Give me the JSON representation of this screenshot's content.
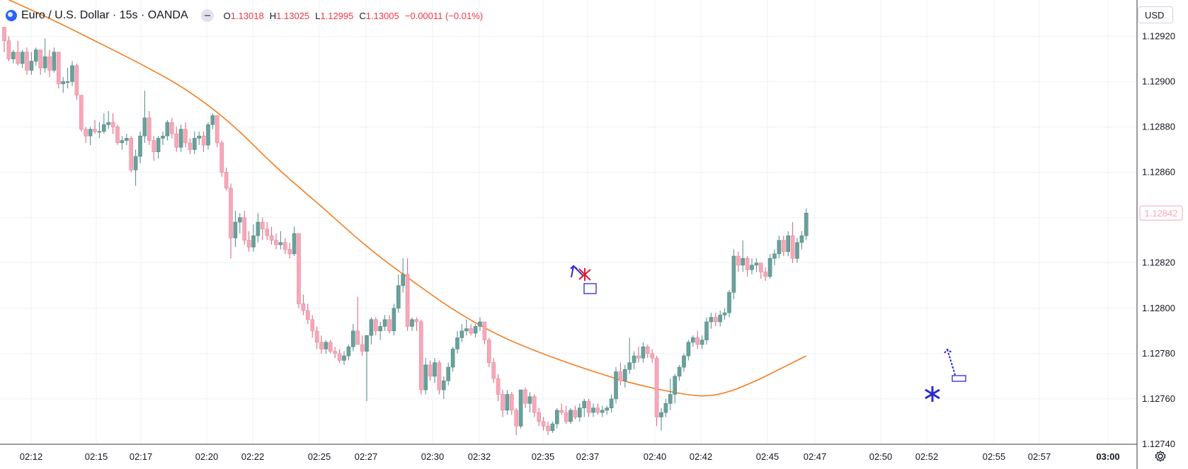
{
  "header": {
    "title": "Euro / U.S. Dollar · 15s · OANDA",
    "ohlc": [
      {
        "label": "O",
        "value": "1.13018"
      },
      {
        "label": "H",
        "value": "1.13025"
      },
      {
        "label": "L",
        "value": "1.12995"
      },
      {
        "label": "C",
        "value": "1.13005"
      }
    ],
    "change": "−0.00011 (−0.01%)"
  },
  "currency_label": "USD",
  "last_price_label": "1.12842",
  "colors": {
    "up": "#6aa09b",
    "down": "#f7a8b8",
    "ma": "#f57c1f",
    "marker": "#2b2bcf",
    "cross": "#e0182b",
    "last_price": "#f7a8b8"
  },
  "chart_data": {
    "type": "candlestick",
    "title": "",
    "ylim": [
      1.1274,
      1.12936
    ],
    "y_ticks": [
      "1.12740",
      "1.12760",
      "1.12780",
      "1.12800",
      "1.12820",
      "1.12840",
      "1.12860",
      "1.12880",
      "1.12900",
      "1.12920"
    ],
    "x_ticks": [
      "02:12",
      "02:15",
      "02:17",
      "02:20",
      "02:22",
      "02:25",
      "02:27",
      "02:30",
      "02:32",
      "02:35",
      "02:37",
      "02:40",
      "02:42",
      "02:45",
      "02:47",
      "02:50",
      "02:52",
      "02:55",
      "02:57",
      "03:00"
    ],
    "last_price": 1.12842,
    "candles": [
      [
        1.12924,
        1.12924,
        1.12913,
        1.12918
      ],
      [
        1.12918,
        1.1292,
        1.12909,
        1.1291
      ],
      [
        1.1291,
        1.12914,
        1.12908,
        1.12913
      ],
      [
        1.12913,
        1.12918,
        1.12907,
        1.12908
      ],
      [
        1.12908,
        1.12914,
        1.12906,
        1.12913
      ],
      [
        1.12913,
        1.12915,
        1.12903,
        1.12905
      ],
      [
        1.12905,
        1.12913,
        1.12903,
        1.12909
      ],
      [
        1.12909,
        1.12915,
        1.12907,
        1.12914
      ],
      [
        1.12914,
        1.12914,
        1.12903,
        1.12906
      ],
      [
        1.12906,
        1.12919,
        1.12904,
        1.12911
      ],
      [
        1.12911,
        1.12914,
        1.12902,
        1.12905
      ],
      [
        1.12905,
        1.12915,
        1.12904,
        1.12913
      ],
      [
        1.12913,
        1.12913,
        1.12897,
        1.12899
      ],
      [
        1.12899,
        1.12902,
        1.12895,
        1.129
      ],
      [
        1.129,
        1.12906,
        1.12897,
        1.129
      ],
      [
        1.129,
        1.12909,
        1.12898,
        1.12907
      ],
      [
        1.12907,
        1.12908,
        1.12892,
        1.12894
      ],
      [
        1.12894,
        1.12894,
        1.12878,
        1.12879
      ],
      [
        1.12879,
        1.1288,
        1.12873,
        1.12876
      ],
      [
        1.12876,
        1.1288,
        1.12872,
        1.12879
      ],
      [
        1.12879,
        1.12883,
        1.12877,
        1.12878
      ],
      [
        1.12878,
        1.12882,
        1.12875,
        1.12878
      ],
      [
        1.12878,
        1.12886,
        1.12877,
        1.12881
      ],
      [
        1.12881,
        1.12887,
        1.12879,
        1.12882
      ],
      [
        1.12882,
        1.12886,
        1.12877,
        1.1288
      ],
      [
        1.1288,
        1.12881,
        1.12872,
        1.12873
      ],
      [
        1.12873,
        1.12876,
        1.1287,
        1.12874
      ],
      [
        1.12874,
        1.12877,
        1.12872,
        1.12875
      ],
      [
        1.12875,
        1.12876,
        1.1286,
        1.12861
      ],
      [
        1.12861,
        1.1287,
        1.12854,
        1.12867
      ],
      [
        1.12867,
        1.12878,
        1.12864,
        1.12876
      ],
      [
        1.12876,
        1.12896,
        1.12873,
        1.12884
      ],
      [
        1.12884,
        1.12887,
        1.12872,
        1.12874
      ],
      [
        1.12874,
        1.12876,
        1.12865,
        1.12869
      ],
      [
        1.12869,
        1.12876,
        1.12866,
        1.12875
      ],
      [
        1.12875,
        1.12878,
        1.12872,
        1.12876
      ],
      [
        1.12876,
        1.12883,
        1.12874,
        1.12882
      ],
      [
        1.12882,
        1.12884,
        1.12875,
        1.12877
      ],
      [
        1.12877,
        1.1288,
        1.12869,
        1.12871
      ],
      [
        1.12871,
        1.12881,
        1.12869,
        1.12879
      ],
      [
        1.12879,
        1.12882,
        1.12871,
        1.12873
      ],
      [
        1.12873,
        1.12875,
        1.12868,
        1.1287
      ],
      [
        1.1287,
        1.12878,
        1.12868,
        1.12875
      ],
      [
        1.12875,
        1.12878,
        1.12872,
        1.12876
      ],
      [
        1.12876,
        1.12878,
        1.12869,
        1.12872
      ],
      [
        1.12872,
        1.12882,
        1.1287,
        1.12881
      ],
      [
        1.12881,
        1.12886,
        1.12879,
        1.12885
      ],
      [
        1.12885,
        1.12885,
        1.12871,
        1.12873
      ],
      [
        1.12873,
        1.12874,
        1.12858,
        1.1286
      ],
      [
        1.1286,
        1.12862,
        1.12852,
        1.12853
      ],
      [
        1.12853,
        1.12855,
        1.12822,
        1.12831
      ],
      [
        1.12831,
        1.12843,
        1.12827,
        1.12838
      ],
      [
        1.12838,
        1.12842,
        1.12833,
        1.1284
      ],
      [
        1.1284,
        1.12843,
        1.12828,
        1.1283
      ],
      [
        1.1283,
        1.12834,
        1.12825,
        1.12827
      ],
      [
        1.12827,
        1.12837,
        1.12825,
        1.12832
      ],
      [
        1.12832,
        1.12842,
        1.12829,
        1.12838
      ],
      [
        1.12838,
        1.1284,
        1.1283,
        1.12835
      ],
      [
        1.12835,
        1.12838,
        1.1283,
        1.12832
      ],
      [
        1.12832,
        1.12836,
        1.12828,
        1.1283
      ],
      [
        1.1283,
        1.12833,
        1.12826,
        1.12828
      ],
      [
        1.12828,
        1.12834,
        1.12826,
        1.12829
      ],
      [
        1.12829,
        1.12831,
        1.12824,
        1.12826
      ],
      [
        1.12826,
        1.12829,
        1.12822,
        1.12824
      ],
      [
        1.12824,
        1.12836,
        1.12823,
        1.12833
      ],
      [
        1.12833,
        1.12833,
        1.128,
        1.12802
      ],
      [
        1.12802,
        1.12806,
        1.12797,
        1.12799
      ],
      [
        1.12799,
        1.12802,
        1.12793,
        1.12795
      ],
      [
        1.12795,
        1.12797,
        1.12787,
        1.1279
      ],
      [
        1.1279,
        1.12792,
        1.12782,
        1.12785
      ],
      [
        1.12785,
        1.12788,
        1.1278,
        1.12782
      ],
      [
        1.12782,
        1.12786,
        1.1278,
        1.12785
      ],
      [
        1.12785,
        1.12786,
        1.1278,
        1.12781
      ],
      [
        1.12781,
        1.12783,
        1.12778,
        1.1278
      ],
      [
        1.1278,
        1.12782,
        1.12776,
        1.12777
      ],
      [
        1.12777,
        1.12781,
        1.12775,
        1.12779
      ],
      [
        1.12779,
        1.12784,
        1.12777,
        1.12783
      ],
      [
        1.12783,
        1.12793,
        1.12781,
        1.1279
      ],
      [
        1.1279,
        1.12805,
        1.12785,
        1.12784
      ],
      [
        1.12784,
        1.12788,
        1.12779,
        1.12781
      ],
      [
        1.12781,
        1.12787,
        1.12759,
        1.12788
      ],
      [
        1.12788,
        1.12796,
        1.12784,
        1.12795
      ],
      [
        1.12795,
        1.12796,
        1.12788,
        1.1279
      ],
      [
        1.1279,
        1.12794,
        1.12786,
        1.12792
      ],
      [
        1.12792,
        1.12797,
        1.1279,
        1.12795
      ],
      [
        1.12795,
        1.12797,
        1.12789,
        1.1279
      ],
      [
        1.1279,
        1.12802,
        1.12788,
        1.128
      ],
      [
        1.128,
        1.12815,
        1.12798,
        1.1281
      ],
      [
        1.1281,
        1.12822,
        1.12807,
        1.12815
      ],
      [
        1.12815,
        1.12822,
        1.1279,
        1.12792
      ],
      [
        1.12792,
        1.12796,
        1.1279,
        1.12795
      ],
      [
        1.12795,
        1.12796,
        1.1279,
        1.12794
      ],
      [
        1.12794,
        1.12795,
        1.12762,
        1.12764
      ],
      [
        1.12764,
        1.12778,
        1.12762,
        1.12775
      ],
      [
        1.12775,
        1.12777,
        1.12768,
        1.1277
      ],
      [
        1.1277,
        1.12778,
        1.12767,
        1.12776
      ],
      [
        1.12776,
        1.12777,
        1.12762,
        1.12764
      ],
      [
        1.12764,
        1.1277,
        1.1276,
        1.12768
      ],
      [
        1.12768,
        1.12776,
        1.12766,
        1.12774
      ],
      [
        1.12774,
        1.12783,
        1.12772,
        1.12782
      ],
      [
        1.12782,
        1.1279,
        1.1278,
        1.12787
      ],
      [
        1.12787,
        1.12793,
        1.12785,
        1.1279
      ],
      [
        1.1279,
        1.12795,
        1.12788,
        1.12791
      ],
      [
        1.12791,
        1.12793,
        1.12788,
        1.12789
      ],
      [
        1.12789,
        1.12793,
        1.12787,
        1.12792
      ],
      [
        1.12792,
        1.12796,
        1.1279,
        1.12794
      ],
      [
        1.12794,
        1.12794,
        1.12784,
        1.12786
      ],
      [
        1.12786,
        1.12787,
        1.12774,
        1.12776
      ],
      [
        1.12776,
        1.12778,
        1.12767,
        1.12769
      ],
      [
        1.12769,
        1.12771,
        1.12759,
        1.12762
      ],
      [
        1.12762,
        1.12764,
        1.12752,
        1.12755
      ],
      [
        1.12755,
        1.12764,
        1.12753,
        1.12762
      ],
      [
        1.12762,
        1.12763,
        1.12753,
        1.12755
      ],
      [
        1.12755,
        1.12756,
        1.12744,
        1.12748
      ],
      [
        1.12748,
        1.12764,
        1.12747,
        1.12764
      ],
      [
        1.12764,
        1.12765,
        1.12756,
        1.12758
      ],
      [
        1.12758,
        1.12763,
        1.12754,
        1.12761
      ],
      [
        1.12761,
        1.12762,
        1.12752,
        1.12754
      ],
      [
        1.12754,
        1.12756,
        1.12748,
        1.1275
      ],
      [
        1.1275,
        1.12752,
        1.12746,
        1.12748
      ],
      [
        1.12748,
        1.1275,
        1.12744,
        1.12746
      ],
      [
        1.12746,
        1.1275,
        1.12745,
        1.12749
      ],
      [
        1.12749,
        1.12756,
        1.12747,
        1.12755
      ],
      [
        1.12755,
        1.12758,
        1.12753,
        1.12754
      ],
      [
        1.12754,
        1.12757,
        1.12749,
        1.1275
      ],
      [
        1.1275,
        1.12756,
        1.12749,
        1.12755
      ],
      [
        1.12755,
        1.12757,
        1.12751,
        1.12752
      ],
      [
        1.12752,
        1.12758,
        1.1275,
        1.12756
      ],
      [
        1.12756,
        1.1276,
        1.12752,
        1.12759
      ],
      [
        1.12759,
        1.1276,
        1.12752,
        1.12754
      ],
      [
        1.12754,
        1.12758,
        1.12752,
        1.12756
      ],
      [
        1.12756,
        1.12758,
        1.12753,
        1.12754
      ],
      [
        1.12754,
        1.12757,
        1.12752,
        1.12755
      ],
      [
        1.12755,
        1.12757,
        1.12753,
        1.12756
      ],
      [
        1.12756,
        1.12762,
        1.12754,
        1.1276
      ],
      [
        1.1276,
        1.12774,
        1.12758,
        1.12772
      ],
      [
        1.12772,
        1.12776,
        1.12766,
        1.12768
      ],
      [
        1.12768,
        1.12775,
        1.12765,
        1.12773
      ],
      [
        1.12773,
        1.12787,
        1.12771,
        1.12776
      ],
      [
        1.12776,
        1.12781,
        1.12773,
        1.12779
      ],
      [
        1.12779,
        1.12783,
        1.12776,
        1.12778
      ],
      [
        1.12778,
        1.12785,
        1.12776,
        1.12783
      ],
      [
        1.12783,
        1.12784,
        1.12778,
        1.1278
      ],
      [
        1.1278,
        1.12782,
        1.12776,
        1.12778
      ],
      [
        1.12778,
        1.12779,
        1.12748,
        1.12752
      ],
      [
        1.12752,
        1.12756,
        1.12746,
        1.12754
      ],
      [
        1.12754,
        1.1276,
        1.12752,
        1.12758
      ],
      [
        1.12758,
        1.12769,
        1.12755,
        1.12762
      ],
      [
        1.12762,
        1.12771,
        1.12758,
        1.1277
      ],
      [
        1.1277,
        1.12775,
        1.12768,
        1.12774
      ],
      [
        1.12774,
        1.1278,
        1.12772,
        1.12779
      ],
      [
        1.12779,
        1.12786,
        1.12777,
        1.12785
      ],
      [
        1.12785,
        1.12788,
        1.12783,
        1.12787
      ],
      [
        1.12787,
        1.1279,
        1.12782,
        1.12784
      ],
      [
        1.12784,
        1.12788,
        1.12782,
        1.12786
      ],
      [
        1.12786,
        1.12796,
        1.12784,
        1.12794
      ],
      [
        1.12794,
        1.12798,
        1.12791,
        1.12796
      ],
      [
        1.12796,
        1.12798,
        1.12792,
        1.12794
      ],
      [
        1.12794,
        1.12799,
        1.12792,
        1.12797
      ],
      [
        1.12797,
        1.128,
        1.12795,
        1.12798
      ],
      [
        1.12798,
        1.12808,
        1.12796,
        1.12807
      ],
      [
        1.12807,
        1.12826,
        1.12804,
        1.12823
      ],
      [
        1.12823,
        1.12825,
        1.12816,
        1.12819
      ],
      [
        1.12819,
        1.1283,
        1.12816,
        1.12822
      ],
      [
        1.12822,
        1.12823,
        1.12814,
        1.12817
      ],
      [
        1.12817,
        1.12822,
        1.12815,
        1.12819
      ],
      [
        1.12819,
        1.12822,
        1.12816,
        1.1282
      ],
      [
        1.1282,
        1.1282,
        1.12813,
        1.12816
      ],
      [
        1.12816,
        1.12818,
        1.12812,
        1.12814
      ],
      [
        1.12814,
        1.12824,
        1.12813,
        1.12822
      ],
      [
        1.12822,
        1.12826,
        1.12819,
        1.12824
      ],
      [
        1.12824,
        1.12832,
        1.12822,
        1.1283
      ],
      [
        1.1283,
        1.12832,
        1.12823,
        1.12825
      ],
      [
        1.12825,
        1.12834,
        1.12823,
        1.12832
      ],
      [
        1.12832,
        1.12838,
        1.1282,
        1.12822
      ],
      [
        1.12822,
        1.12831,
        1.1282,
        1.12829
      ],
      [
        1.12829,
        1.12834,
        1.12826,
        1.12832
      ],
      [
        1.12832,
        1.12844,
        1.1283,
        1.12842
      ]
    ],
    "ma_series": [
      [
        0,
        1.12937
      ],
      [
        10,
        1.12928
      ],
      [
        20,
        1.12918
      ],
      [
        30,
        1.12908
      ],
      [
        40,
        1.12897
      ],
      [
        50,
        1.12882
      ],
      [
        60,
        1.12862
      ],
      [
        70,
        1.12845
      ],
      [
        80,
        1.12827
      ],
      [
        90,
        1.12812
      ],
      [
        100,
        1.12798
      ],
      [
        110,
        1.12787
      ],
      [
        120,
        1.12779
      ],
      [
        130,
        1.12772
      ],
      [
        140,
        1.12766
      ],
      [
        150,
        1.12762
      ],
      [
        155,
        1.12761
      ],
      [
        160,
        1.12763
      ],
      [
        166,
        1.12768
      ],
      [
        170,
        1.12772
      ],
      [
        175,
        1.12777
      ],
      [
        177,
        1.12779
      ]
    ]
  }
}
